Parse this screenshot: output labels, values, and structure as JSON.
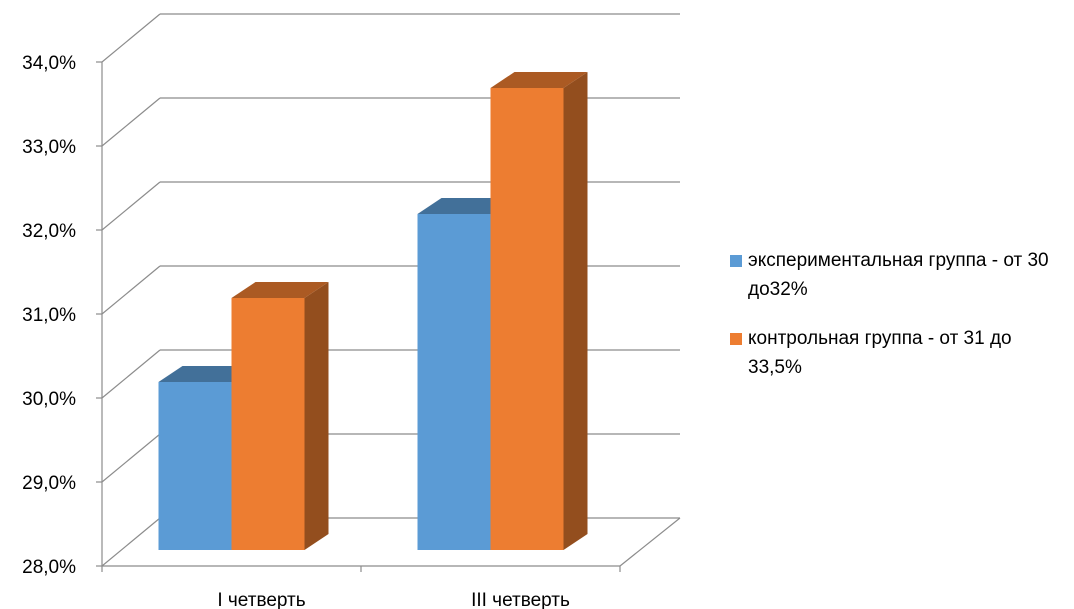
{
  "chart_data": {
    "type": "bar",
    "categories": [
      "I четверть",
      "III четверть"
    ],
    "series": [
      {
        "name": "экспериментальная группа - от 30 до32%",
        "values": [
          30.0,
          32.0
        ],
        "color": "#5B9BD5"
      },
      {
        "name": "контрольная группа - от 31 до 33,5%",
        "values": [
          31.0,
          33.5
        ],
        "color": "#ED7D31"
      }
    ],
    "ylim": [
      28.0,
      34.0
    ],
    "yticks": [
      "28,0%",
      "29,0%",
      "30,0%",
      "31,0%",
      "32,0%",
      "33,0%",
      "34,0%"
    ],
    "grid": true,
    "legend": "right",
    "style": "3d-clustered-column"
  }
}
